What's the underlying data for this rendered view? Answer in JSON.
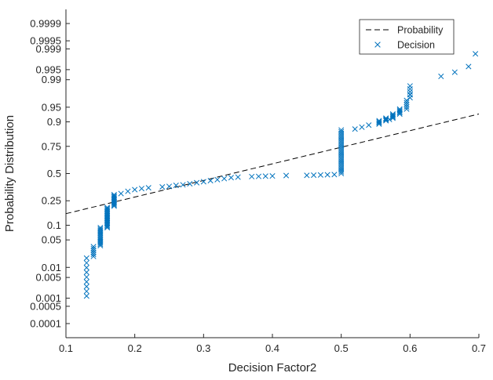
{
  "chart_data": {
    "type": "scatter",
    "title": "",
    "xlabel": "Decision Factor2",
    "ylabel": "Probability Distribution",
    "xlim": [
      0.1,
      0.7
    ],
    "y_scale": "normal-probability",
    "x_ticks": [
      "0.1",
      "0.2",
      "0.3",
      "0.4",
      "0.5",
      "0.6",
      "0.7"
    ],
    "y_ticks": [
      {
        "value": 0.0001,
        "label": "0.0001"
      },
      {
        "value": 0.0005,
        "label": "0.0005"
      },
      {
        "value": 0.001,
        "label": "0.001"
      },
      {
        "value": 0.005,
        "label": "0.005"
      },
      {
        "value": 0.01,
        "label": "0.01"
      },
      {
        "value": 0.05,
        "label": "0.05"
      },
      {
        "value": 0.1,
        "label": "0.1"
      },
      {
        "value": 0.25,
        "label": "0.25"
      },
      {
        "value": 0.5,
        "label": "0.5"
      },
      {
        "value": 0.75,
        "label": "0.75"
      },
      {
        "value": 0.9,
        "label": "0.9"
      },
      {
        "value": 0.95,
        "label": "0.95"
      },
      {
        "value": 0.99,
        "label": "0.99"
      },
      {
        "value": 0.995,
        "label": "0.995"
      },
      {
        "value": 0.999,
        "label": "0.999"
      },
      {
        "value": 0.9995,
        "label": "0.9995"
      },
      {
        "value": 0.9999,
        "label": "0.9999"
      }
    ],
    "grid": false,
    "legend": {
      "placement": "top-right",
      "entries": [
        "Probability",
        "Decision"
      ]
    },
    "colors": {
      "decision": "#0072BD",
      "probability": "#000000"
    },
    "series": [
      {
        "name": "Probability",
        "type": "line",
        "style": "dashed",
        "x": [
          0.1,
          0.7
        ],
        "y": [
          0.16,
          0.93
        ]
      },
      {
        "name": "Decision",
        "type": "scatter",
        "marker": "x",
        "clusters": [
          {
            "x": 0.13,
            "y_from": 0.0012,
            "y_to": 0.018,
            "count": 9
          },
          {
            "x": 0.14,
            "y_from": 0.02,
            "y_to": 0.035,
            "count": 6
          },
          {
            "x": 0.15,
            "y_from": 0.037,
            "y_to": 0.09,
            "count": 14
          },
          {
            "x": 0.16,
            "y_from": 0.09,
            "y_to": 0.2,
            "count": 18
          },
          {
            "x": 0.17,
            "y_from": 0.21,
            "y_to": 0.3,
            "count": 11
          }
        ],
        "points": [
          [
            0.18,
            0.31
          ],
          [
            0.19,
            0.33
          ],
          [
            0.2,
            0.345
          ],
          [
            0.21,
            0.355
          ],
          [
            0.22,
            0.362
          ],
          [
            0.24,
            0.37
          ],
          [
            0.25,
            0.375
          ],
          [
            0.26,
            0.385
          ],
          [
            0.27,
            0.39
          ],
          [
            0.28,
            0.4
          ],
          [
            0.29,
            0.41
          ],
          [
            0.3,
            0.42
          ],
          [
            0.31,
            0.43
          ],
          [
            0.32,
            0.44
          ],
          [
            0.33,
            0.45
          ],
          [
            0.34,
            0.46
          ],
          [
            0.35,
            0.465
          ],
          [
            0.37,
            0.47
          ],
          [
            0.38,
            0.472
          ],
          [
            0.39,
            0.474
          ],
          [
            0.4,
            0.476
          ],
          [
            0.42,
            0.48
          ],
          [
            0.45,
            0.482
          ],
          [
            0.46,
            0.484
          ],
          [
            0.47,
            0.486
          ],
          [
            0.48,
            0.488
          ],
          [
            0.49,
            0.49
          ],
          [
            0.52,
            0.865
          ],
          [
            0.53,
            0.875
          ],
          [
            0.54,
            0.885
          ],
          [
            0.57,
            0.91
          ],
          [
            0.6,
            0.975
          ],
          [
            0.645,
            0.992
          ],
          [
            0.665,
            0.994
          ],
          [
            0.685,
            0.996
          ],
          [
            0.695,
            0.9985
          ]
        ],
        "vertical_runs": [
          {
            "x": 0.5,
            "y_from": 0.5,
            "y_to": 0.86,
            "count": 26
          },
          {
            "x": 0.555,
            "y_from": 0.89,
            "y_to": 0.905,
            "count": 4
          },
          {
            "x": 0.565,
            "y_from": 0.905,
            "y_to": 0.915,
            "count": 4
          },
          {
            "x": 0.575,
            "y_from": 0.915,
            "y_to": 0.93,
            "count": 5
          },
          {
            "x": 0.585,
            "y_from": 0.93,
            "y_to": 0.945,
            "count": 5
          },
          {
            "x": 0.595,
            "y_from": 0.945,
            "y_to": 0.965,
            "count": 5
          },
          {
            "x": 0.6,
            "y_from": 0.97,
            "y_to": 0.985,
            "count": 5
          }
        ]
      }
    ]
  }
}
